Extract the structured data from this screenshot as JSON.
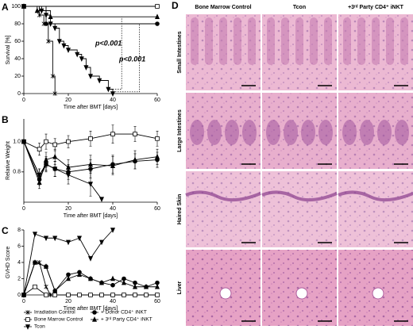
{
  "chart_data": [
    {
      "type": "line",
      "step": true,
      "label": "A",
      "xlabel": "Time after BMT [days]",
      "ylabel": "Survival [%]",
      "xlim": [
        0,
        60
      ],
      "xticks": [
        0,
        20,
        40,
        60
      ],
      "ylim": [
        0,
        100
      ],
      "yticks": [
        0,
        20,
        40,
        60,
        80,
        100
      ],
      "annotations": [
        {
          "text": "p<0.001"
        },
        {
          "text": "p<0.001"
        }
      ],
      "series": [
        {
          "color": "#000000",
          "marker": "star",
          "x": [
            0,
            7,
            9,
            11,
            13,
            14
          ],
          "values": [
            100,
            90,
            80,
            60,
            20,
            0
          ]
        },
        {
          "color": "#000000",
          "marker": "square-open",
          "x": [
            0,
            60
          ],
          "values": [
            100,
            100
          ]
        },
        {
          "color": "#000000",
          "marker": "triangle-down",
          "x": [
            0,
            8,
            10,
            12,
            14,
            16,
            18,
            20,
            24,
            26,
            28,
            30,
            34,
            38,
            40
          ],
          "values": [
            100,
            95,
            90,
            80,
            75,
            60,
            55,
            50,
            45,
            40,
            30,
            20,
            15,
            5,
            0
          ]
        },
        {
          "color": "#000000",
          "marker": "circle",
          "x": [
            0,
            10,
            60
          ],
          "values": [
            100,
            80,
            80
          ]
        },
        {
          "color": "#000000",
          "marker": "triangle",
          "x": [
            0,
            6,
            12,
            60
          ],
          "values": [
            100,
            95,
            88,
            88
          ]
        }
      ]
    },
    {
      "type": "line",
      "label": "B",
      "xlabel": "Time after BMT [days]",
      "ylabel": "Relative Weight",
      "xlim": [
        0,
        60
      ],
      "xticks": [
        0,
        20,
        40,
        60
      ],
      "ylim": [
        0.6,
        1.15
      ],
      "yticks": [
        0.8,
        {
          "value": 1.0,
          "label": "1.0"
        }
      ],
      "series": [
        {
          "color": "#000000",
          "marker": "star",
          "x": [
            0,
            7,
            10,
            14
          ],
          "values": [
            1.0,
            0.78,
            0.85,
            0.82
          ],
          "errors": [
            0,
            0.04,
            0.04,
            0.05
          ]
        },
        {
          "color": "#000000",
          "marker": "square-open",
          "x": [
            0,
            7,
            10,
            14,
            20,
            30,
            40,
            50,
            60
          ],
          "values": [
            1.0,
            0.95,
            1.0,
            0.98,
            1.0,
            1.02,
            1.05,
            1.05,
            1.02
          ],
          "errors": [
            0,
            0.04,
            0.05,
            0.04,
            0.04,
            0.05,
            0.06,
            0.05,
            0.05
          ]
        },
        {
          "color": "#000000",
          "marker": "triangle-down",
          "x": [
            0,
            7,
            10,
            14,
            20,
            30,
            35
          ],
          "values": [
            1.0,
            0.78,
            0.85,
            0.82,
            0.78,
            0.72,
            0.62
          ],
          "errors": [
            0,
            0.04,
            0.05,
            0.05,
            0.06,
            0.08,
            0
          ]
        },
        {
          "color": "#000000",
          "marker": "circle",
          "x": [
            0,
            7,
            10,
            14,
            20,
            30,
            40,
            50,
            60
          ],
          "values": [
            1.0,
            0.75,
            0.85,
            0.82,
            0.8,
            0.82,
            0.85,
            0.87,
            0.88
          ],
          "errors": [
            0,
            0.04,
            0.04,
            0.05,
            0.05,
            0.06,
            0.06,
            0.05,
            0.05
          ]
        },
        {
          "color": "#000000",
          "marker": "triangle",
          "x": [
            0,
            7,
            10,
            14,
            20,
            30,
            40,
            50,
            60
          ],
          "values": [
            1.0,
            0.73,
            0.88,
            0.9,
            0.83,
            0.85,
            0.84,
            0.88,
            0.9
          ],
          "errors": [
            0,
            0.04,
            0.05,
            0.05,
            0.05,
            0.06,
            0.06,
            0.06,
            0.05
          ]
        }
      ]
    },
    {
      "type": "line",
      "label": "C",
      "xlabel": "Time after BMT [days]",
      "ylabel": "GVHD Score",
      "xlim": [
        0,
        60
      ],
      "xticks": [
        0,
        20,
        40,
        60
      ],
      "ylim": [
        0,
        8
      ],
      "yticks": [
        0,
        2,
        4,
        6,
        8
      ],
      "series": [
        {
          "name": "Irradiation Control",
          "color": "#000000",
          "marker": "star",
          "x": [
            0,
            5,
            7,
            10,
            12
          ],
          "values": [
            0,
            4,
            4,
            1,
            0
          ]
        },
        {
          "name": "Bone Marrow Control",
          "color": "#000000",
          "marker": "square-open",
          "x": [
            0,
            5,
            10,
            14,
            20,
            25,
            30,
            35,
            40,
            45,
            50,
            55,
            60
          ],
          "values": [
            0,
            1,
            0,
            0,
            0,
            0,
            0,
            0,
            0,
            0,
            0,
            0,
            0
          ]
        },
        {
          "name": "Tcon",
          "color": "#000000",
          "marker": "triangle-down",
          "x": [
            0,
            5,
            10,
            14,
            20,
            25,
            30,
            35,
            40
          ],
          "values": [
            0,
            7.5,
            7,
            7,
            6.5,
            7,
            4.5,
            6.5,
            8
          ]
        },
        {
          "name": "+ Donor CD4⁺ iNKT",
          "color": "#000000",
          "marker": "circle",
          "x": [
            0,
            5,
            10,
            14,
            20,
            25,
            30,
            35,
            40,
            45,
            50,
            55,
            60
          ],
          "values": [
            0,
            4,
            3.5,
            0.5,
            2.5,
            2.8,
            2,
            1.5,
            1.2,
            2,
            1.5,
            1,
            1.5
          ]
        },
        {
          "name": "+ 3ʳᵈ Party CD4⁺ iNKT",
          "color": "#000000",
          "marker": "triangle",
          "x": [
            0,
            5,
            10,
            14,
            20,
            25,
            30,
            35,
            40,
            45,
            50,
            55,
            60
          ],
          "values": [
            0,
            4,
            3.5,
            0.5,
            2,
            2.5,
            2,
            1.5,
            2,
            1.5,
            1,
            1,
            1
          ]
        }
      ]
    }
  ],
  "histology": {
    "label": "D",
    "columns": [
      "Bone Marrow Control",
      "Tcon",
      "+3ʳᵈ Party CD4⁺ iNKT"
    ],
    "rows": [
      "Small Intestines",
      "Large Intestines",
      "Haired Skin",
      "Liver"
    ]
  }
}
